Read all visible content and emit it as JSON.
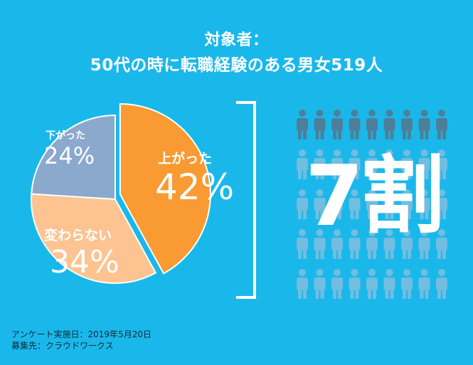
{
  "title": {
    "line1": "対象者：",
    "line2": "50代の時に転職経験のある男女519人"
  },
  "chart_data": {
    "type": "pie",
    "slices": [
      {
        "label": "上がった",
        "value": 42,
        "display": "42%",
        "color": "#f99a32"
      },
      {
        "label": "変わらない",
        "value": 34,
        "display": "34%",
        "color": "#fdc391"
      },
      {
        "label": "下がった",
        "value": 24,
        "display": "24%",
        "color": "#8ba9cd"
      }
    ],
    "start": "12 o'clock, clockwise",
    "highlighted_slice": "上がった",
    "callout": "7割"
  },
  "people": {
    "dark_count": 9,
    "light_count": 36,
    "dark_color": "#4d7f9a",
    "light_color": "#72bde0"
  },
  "footer": {
    "line1": "アンケート実施日：2019年5月20日",
    "line2": "募集先：クラウドワークス"
  }
}
